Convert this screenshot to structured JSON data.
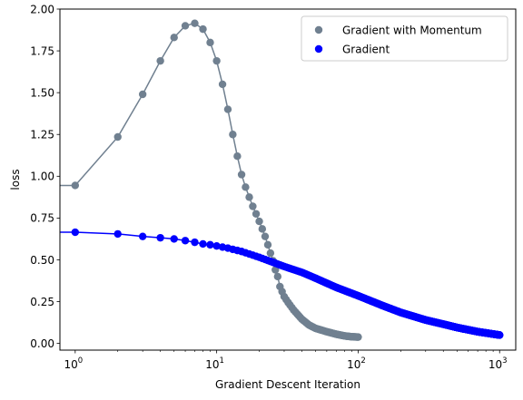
{
  "chart_data": {
    "type": "scatter",
    "title": "",
    "xlabel": "Gradient Descent Iteration",
    "ylabel": "loss",
    "xscale": "log",
    "xlim": [
      0.78,
      1300
    ],
    "ylim": [
      -0.04,
      2.0
    ],
    "x_ticks": [
      {
        "label": "10",
        "exp": "0",
        "value": 1
      },
      {
        "label": "10",
        "exp": "1",
        "value": 10
      },
      {
        "label": "10",
        "exp": "2",
        "value": 100
      },
      {
        "label": "10",
        "exp": "3",
        "value": 1000
      }
    ],
    "y_ticks": [
      0.0,
      0.25,
      0.5,
      0.75,
      1.0,
      1.25,
      1.5,
      1.75,
      2.0
    ],
    "y_tick_labels": [
      "0.00",
      "0.25",
      "0.50",
      "0.75",
      "1.00",
      "1.25",
      "1.50",
      "1.75",
      "2.00"
    ],
    "grid": false,
    "legend_position": "top-right",
    "series": [
      {
        "name": "Gradient with Momentum",
        "color": "#708090",
        "marker": "circle",
        "line": true,
        "initial_value": 0.945,
        "x_range": [
          1,
          100
        ],
        "keypoints": [
          [
            1,
            0.945
          ],
          [
            2,
            1.235
          ],
          [
            3,
            1.49
          ],
          [
            4,
            1.69
          ],
          [
            5,
            1.83
          ],
          [
            6,
            1.9
          ],
          [
            7,
            1.915
          ],
          [
            8,
            1.88
          ],
          [
            9,
            1.8
          ],
          [
            10,
            1.69
          ],
          [
            11,
            1.55
          ],
          [
            12,
            1.4
          ],
          [
            13,
            1.25
          ],
          [
            14,
            1.12
          ],
          [
            15,
            1.01
          ],
          [
            16,
            0.935
          ],
          [
            17,
            0.875
          ],
          [
            18,
            0.82
          ],
          [
            19,
            0.775
          ],
          [
            20,
            0.73
          ],
          [
            21,
            0.685
          ],
          [
            22,
            0.64
          ],
          [
            23,
            0.59
          ],
          [
            24,
            0.54
          ],
          [
            25,
            0.495
          ],
          [
            26,
            0.44
          ],
          [
            27,
            0.4
          ],
          [
            28,
            0.34
          ],
          [
            29,
            0.31
          ],
          [
            30,
            0.28
          ],
          [
            32,
            0.245
          ],
          [
            35,
            0.2
          ],
          [
            40,
            0.145
          ],
          [
            45,
            0.11
          ],
          [
            50,
            0.09
          ],
          [
            60,
            0.07
          ],
          [
            70,
            0.055
          ],
          [
            80,
            0.045
          ],
          [
            90,
            0.04
          ],
          [
            100,
            0.038
          ]
        ]
      },
      {
        "name": "Gradient",
        "color": "#0000ff",
        "marker": "circle",
        "line": true,
        "initial_value": 0.665,
        "x_range": [
          1,
          1000
        ],
        "keypoints": [
          [
            1,
            0.665
          ],
          [
            2,
            0.655
          ],
          [
            3,
            0.64
          ],
          [
            4,
            0.632
          ],
          [
            5,
            0.625
          ],
          [
            6,
            0.615
          ],
          [
            7,
            0.605
          ],
          [
            8,
            0.595
          ],
          [
            9,
            0.59
          ],
          [
            10,
            0.583
          ],
          [
            12,
            0.57
          ],
          [
            15,
            0.55
          ],
          [
            20,
            0.515
          ],
          [
            25,
            0.485
          ],
          [
            30,
            0.46
          ],
          [
            40,
            0.425
          ],
          [
            50,
            0.39
          ],
          [
            70,
            0.335
          ],
          [
            100,
            0.285
          ],
          [
            150,
            0.225
          ],
          [
            200,
            0.185
          ],
          [
            300,
            0.14
          ],
          [
            400,
            0.115
          ],
          [
            500,
            0.095
          ],
          [
            700,
            0.07
          ],
          [
            1000,
            0.05
          ]
        ]
      }
    ]
  }
}
